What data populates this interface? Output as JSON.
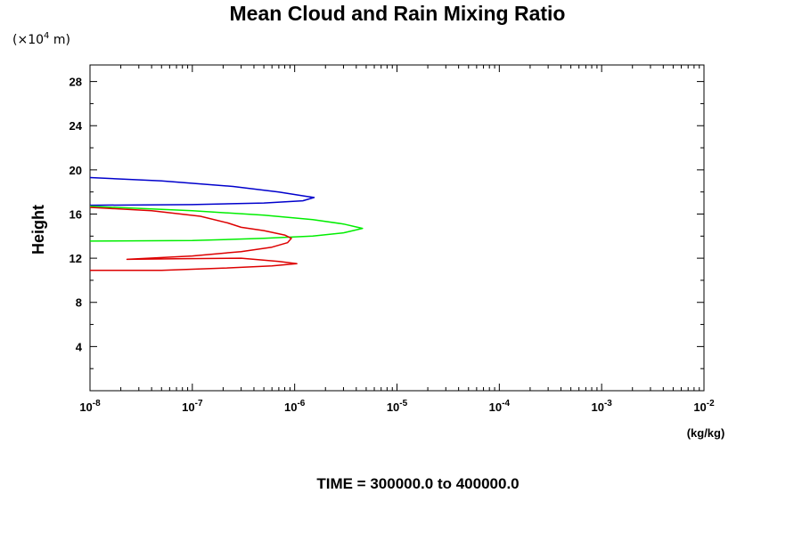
{
  "chart_data": {
    "type": "line",
    "title": "Mean Cloud and Rain Mixing Ratio",
    "ylabel": "Height",
    "y_unit_prefix": "(×10",
    "y_unit_exp": "4",
    "y_unit_suffix": " m)",
    "xlabel": "(kg/kg)",
    "footer": "TIME = 300000.0 to 400000.0",
    "x_scale": "log",
    "xlim": [
      1e-08,
      0.01
    ],
    "ylim": [
      0,
      29.5
    ],
    "x_ticks": [
      {
        "base": "10",
        "exp": "-8",
        "value": 1e-08
      },
      {
        "base": "10",
        "exp": "-7",
        "value": 1e-07
      },
      {
        "base": "10",
        "exp": "-6",
        "value": 1e-06
      },
      {
        "base": "10",
        "exp": "-5",
        "value": 1e-05
      },
      {
        "base": "10",
        "exp": "-4",
        "value": 0.0001
      },
      {
        "base": "10",
        "exp": "-3",
        "value": 0.001
      },
      {
        "base": "10",
        "exp": "-2",
        "value": 0.01
      }
    ],
    "y_ticks": [
      "4",
      "8",
      "12",
      "16",
      "20",
      "24",
      "28"
    ],
    "grid": false,
    "series": [
      {
        "color": "#0000cc",
        "points": [
          [
            1e-08,
            19.3
          ],
          [
            5e-08,
            19.0
          ],
          [
            2.5e-07,
            18.5
          ],
          [
            7e-07,
            18.0
          ],
          [
            1.3e-06,
            17.6
          ],
          [
            1.55e-06,
            17.5
          ],
          [
            1.2e-06,
            17.2
          ],
          [
            5e-07,
            17.0
          ],
          [
            1e-07,
            16.85
          ],
          [
            1e-08,
            16.8
          ]
        ]
      },
      {
        "color": "#00ee00",
        "points": [
          [
            1e-08,
            16.7
          ],
          [
            1e-07,
            16.3
          ],
          [
            5e-07,
            15.9
          ],
          [
            1.5e-06,
            15.5
          ],
          [
            3e-06,
            15.1
          ],
          [
            4.6e-06,
            14.7
          ],
          [
            3e-06,
            14.3
          ],
          [
            1.5e-06,
            14.0
          ],
          [
            5e-07,
            13.8
          ],
          [
            1e-07,
            13.6
          ],
          [
            1e-08,
            13.55
          ]
        ]
      },
      {
        "color": "#dd0000",
        "points": [
          [
            1e-08,
            16.6
          ],
          [
            4e-08,
            16.3
          ],
          [
            1.2e-07,
            15.8
          ],
          [
            2.2e-07,
            15.2
          ],
          [
            3e-07,
            14.8
          ],
          [
            5e-07,
            14.5
          ],
          [
            8e-07,
            14.1
          ],
          [
            9.3e-07,
            13.8
          ],
          [
            8.5e-07,
            13.4
          ],
          [
            6e-07,
            13.0
          ],
          [
            3e-07,
            12.6
          ],
          [
            1e-07,
            12.2
          ],
          [
            2.3e-08,
            11.9
          ],
          [
            7e-08,
            11.95
          ],
          [
            3e-07,
            12.0
          ],
          [
            7e-07,
            11.7
          ],
          [
            1.05e-06,
            11.5
          ],
          [
            6e-07,
            11.3
          ],
          [
            2e-07,
            11.1
          ],
          [
            5e-08,
            10.9
          ],
          [
            1e-08,
            10.9
          ]
        ]
      }
    ]
  }
}
